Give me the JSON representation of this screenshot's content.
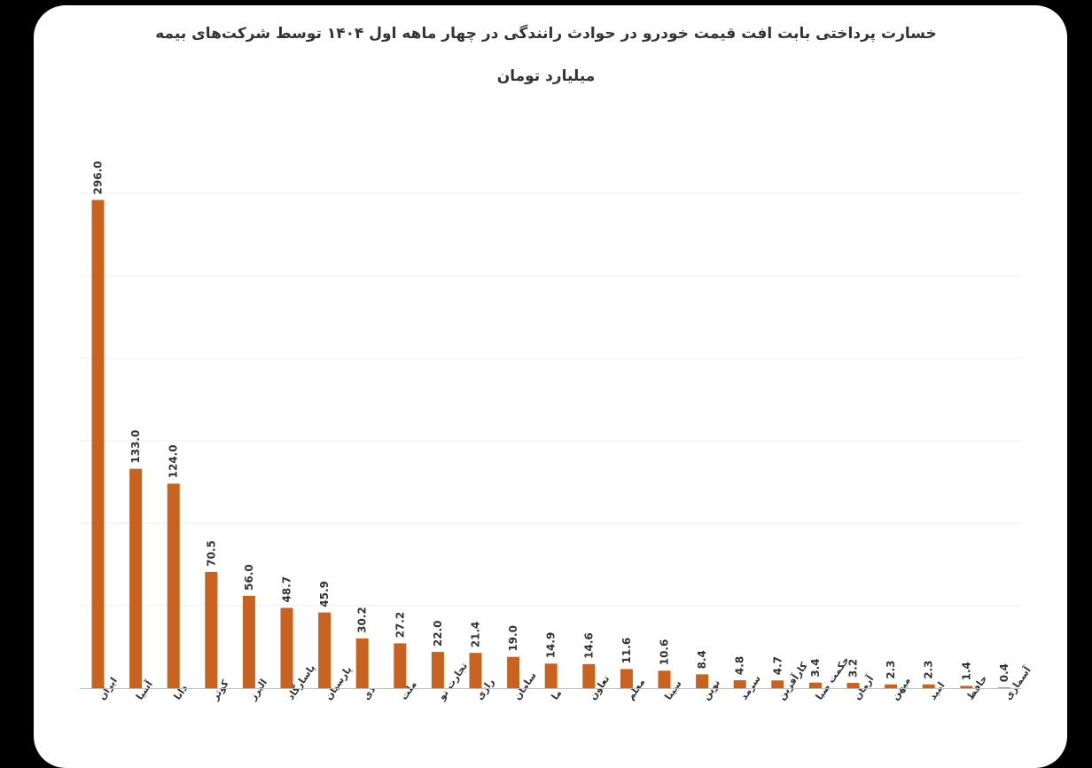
{
  "colors": {
    "bar": "#c8621e",
    "grid": "#ececec",
    "axis": "#bdbdbd",
    "text": "#333333",
    "background": "#000000",
    "card": "#ffffff"
  },
  "chart_data": {
    "type": "bar",
    "title": "خسارت پرداختی بابت افت قیمت خودرو در حوادث رانندگی در چهار ماهه اول ۱۴۰۴ توسط شرکت‌های بیمه",
    "subtitle": "میلیارد تومان",
    "xlabel": "",
    "ylabel": "",
    "ylim": [
      0,
      300
    ],
    "grid": true,
    "grid_values": [
      0,
      50,
      100,
      150,
      200,
      250,
      300
    ],
    "legend": "none",
    "categories": [
      "ایران",
      "آسیا",
      "دانا",
      "کوثر",
      "البرز",
      "پاسارگاد",
      "پارسیان",
      "دی",
      "ملت",
      "تجارت نو",
      "رازی",
      "سامان",
      "ما",
      "تعاون",
      "معلم",
      "سینا",
      "نوین",
      "سرمد",
      "کارآفرین",
      "حکمت صبا",
      "آرمان",
      "میهن",
      "امید",
      "حافظ",
      "آسماری"
    ],
    "values": [
      296.0,
      133.0,
      124.0,
      70.5,
      56.0,
      48.7,
      45.9,
      30.2,
      27.2,
      22.0,
      21.4,
      19.0,
      14.9,
      14.6,
      11.6,
      10.6,
      8.4,
      4.8,
      4.7,
      3.4,
      3.2,
      2.3,
      2.3,
      1.4,
      0.4
    ],
    "value_labels": [
      "296.0",
      "133.0",
      "124.0",
      "70.5",
      "56.0",
      "48.7",
      "45.9",
      "30.2",
      "27.2",
      "22.0",
      "21.4",
      "19.0",
      "14.9",
      "14.6",
      "11.6",
      "10.6",
      "8.4",
      "4.8",
      "4.7",
      "3.4",
      "3.2",
      "2.3",
      "2.3",
      "1.4",
      "0.4"
    ]
  }
}
